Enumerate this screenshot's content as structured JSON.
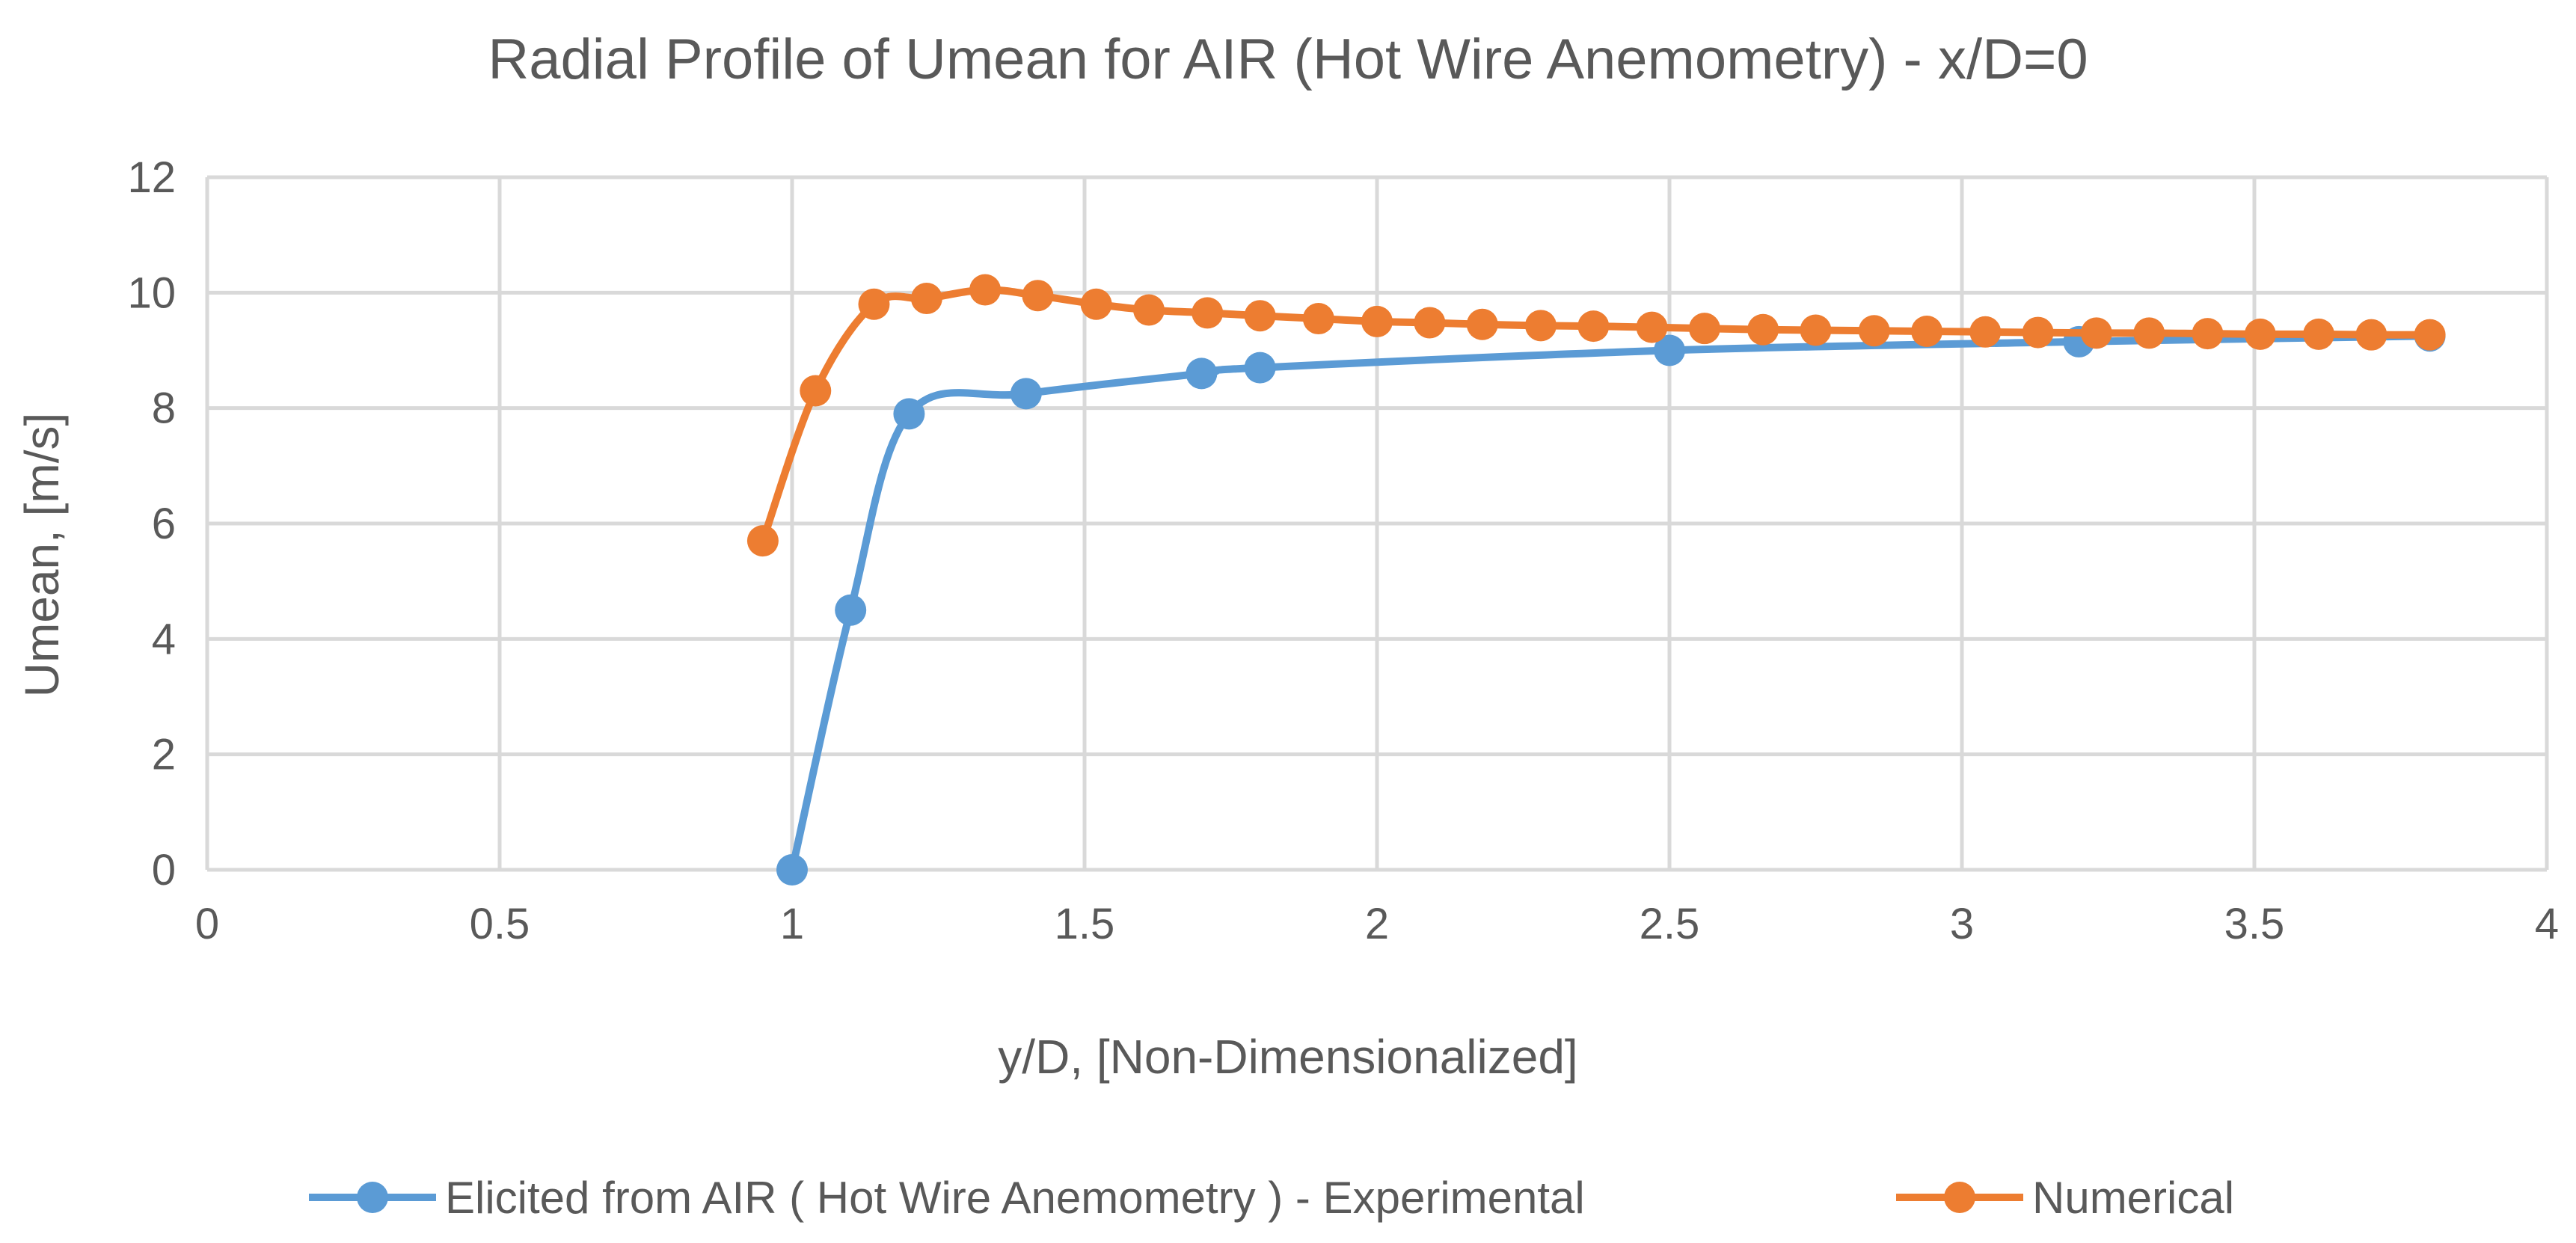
{
  "chart_data": {
    "type": "line",
    "title": "Radial Profile of Umean for AIR (Hot Wire Anemometry)  - x/D=0",
    "xlabel": "y/D, [Non-Dimensionalized]",
    "ylabel": "Umean, [m/s]",
    "xlim": [
      0,
      4
    ],
    "ylim": [
      0,
      12
    ],
    "x_ticks": [
      0,
      0.5,
      1,
      1.5,
      2,
      2.5,
      3,
      3.5,
      4
    ],
    "x_tick_labels": [
      "0",
      "0.5",
      "1",
      "1.5",
      "2",
      "2.5",
      "3",
      "3.5",
      "4"
    ],
    "y_ticks": [
      0,
      2,
      4,
      6,
      8,
      10,
      12
    ],
    "y_tick_labels": [
      "0",
      "2",
      "4",
      "6",
      "8",
      "10",
      "12"
    ],
    "grid": true,
    "legend_position": "bottom",
    "smooth": true,
    "series": [
      {
        "name": "Elicited from AIR ( Hot Wire Anemometry ) - Experimental",
        "color": "#5b9bd5",
        "x": [
          1.0,
          1.1,
          1.2,
          1.4,
          1.7,
          1.8,
          2.5,
          3.2,
          3.8
        ],
        "y": [
          0.0,
          4.5,
          7.9,
          8.25,
          8.6,
          8.7,
          9.0,
          9.15,
          9.25
        ]
      },
      {
        "name": "Numerical",
        "color": "#ed7d31",
        "x": [
          0.95,
          1.04,
          1.14,
          1.23,
          1.33,
          1.42,
          1.52,
          1.61,
          1.71,
          1.8,
          1.9,
          2.0,
          2.09,
          2.18,
          2.28,
          2.37,
          2.47,
          2.56,
          2.66,
          2.75,
          2.85,
          2.94,
          3.04,
          3.13,
          3.23,
          3.32,
          3.42,
          3.51,
          3.61,
          3.7,
          3.8
        ],
        "y": [
          5.7,
          8.3,
          9.8,
          9.9,
          10.05,
          9.95,
          9.8,
          9.7,
          9.65,
          9.6,
          9.55,
          9.5,
          9.48,
          9.45,
          9.43,
          9.42,
          9.4,
          9.38,
          9.36,
          9.35,
          9.34,
          9.33,
          9.32,
          9.31,
          9.3,
          9.3,
          9.29,
          9.28,
          9.28,
          9.27,
          9.27
        ]
      }
    ]
  }
}
